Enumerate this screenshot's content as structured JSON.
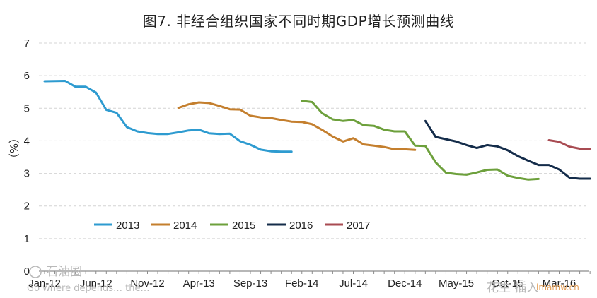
{
  "title": "图7. 非经合组织国家不同时期GDP增长预测曲线",
  "watermark": {
    "left_main": "石油圈",
    "left_sub": "Go where depends… the…",
    "right_main": "花生 插入",
    "right_sub": "imamw.cn"
  },
  "chart_data": {
    "type": "line",
    "title": "图7. 非经合组织国家不同时期GDP增长预测曲线",
    "xlabel": "",
    "ylabel": "（%）",
    "ylim": [
      0,
      7
    ],
    "y_ticks": [
      0,
      1,
      2,
      3,
      4,
      5,
      6,
      7
    ],
    "x_ticks": [
      "Jan-12",
      "Jun-12",
      "Nov-12",
      "Apr-13",
      "Sep-13",
      "Feb-14",
      "Jul-14",
      "Dec-14",
      "May-15",
      "Oct-15",
      "Mar-16"
    ],
    "x_tick_month_index": [
      0,
      5,
      10,
      15,
      20,
      25,
      30,
      35,
      40,
      45,
      50
    ],
    "grid": "horizontal",
    "legend_position": "bottom-left",
    "series": [
      {
        "name": "2013",
        "color": "#2e9bd0",
        "x": [
          0,
          2,
          3,
          4,
          5,
          6,
          7,
          8,
          9,
          10,
          11,
          12,
          13,
          14,
          15,
          16,
          17,
          18,
          19,
          20,
          21,
          22,
          23,
          24
        ],
        "y": [
          5.83,
          5.84,
          5.66,
          5.66,
          5.48,
          4.95,
          4.86,
          4.42,
          4.29,
          4.24,
          4.21,
          4.21,
          4.26,
          4.32,
          4.34,
          4.23,
          4.21,
          4.22,
          3.99,
          3.88,
          3.73,
          3.68,
          3.67,
          3.67
        ]
      },
      {
        "name": "2014",
        "color": "#c47f2e",
        "x": [
          13,
          14,
          15,
          16,
          17,
          18,
          19,
          20,
          21,
          22,
          23,
          24,
          25,
          26,
          27,
          28,
          29,
          30,
          31,
          32,
          33,
          34,
          35,
          36
        ],
        "y": [
          5.01,
          5.12,
          5.18,
          5.16,
          5.07,
          4.97,
          4.96,
          4.77,
          4.72,
          4.7,
          4.64,
          4.59,
          4.58,
          4.51,
          4.33,
          4.13,
          3.98,
          4.08,
          3.89,
          3.85,
          3.81,
          3.74,
          3.74,
          3.72
        ]
      },
      {
        "name": "2015",
        "color": "#6da03c",
        "x": [
          25,
          26,
          27,
          28,
          29,
          30,
          31,
          32,
          33,
          34,
          35,
          36,
          37,
          38,
          39,
          40,
          41,
          42,
          43,
          44,
          45,
          46,
          47,
          48
        ],
        "y": [
          5.23,
          5.19,
          4.84,
          4.66,
          4.61,
          4.64,
          4.48,
          4.46,
          4.34,
          4.29,
          4.29,
          3.85,
          3.84,
          3.34,
          3.02,
          2.98,
          2.96,
          3.03,
          3.11,
          3.12,
          2.93,
          2.86,
          2.81,
          2.83
        ]
      },
      {
        "name": "2016",
        "color": "#142c4a",
        "x": [
          37,
          38,
          39,
          40,
          41,
          42,
          43,
          44,
          45,
          46,
          47,
          48,
          49,
          50,
          51,
          52,
          53
        ],
        "y": [
          4.61,
          4.12,
          4.05,
          3.98,
          3.87,
          3.78,
          3.87,
          3.83,
          3.71,
          3.53,
          3.39,
          3.26,
          3.26,
          3.12,
          2.87,
          2.84,
          2.84
        ]
      },
      {
        "name": "2017",
        "color": "#a84b52",
        "x": [
          49,
          50,
          51,
          52,
          53
        ],
        "y": [
          4.02,
          3.97,
          3.82,
          3.76,
          3.76
        ]
      }
    ]
  }
}
